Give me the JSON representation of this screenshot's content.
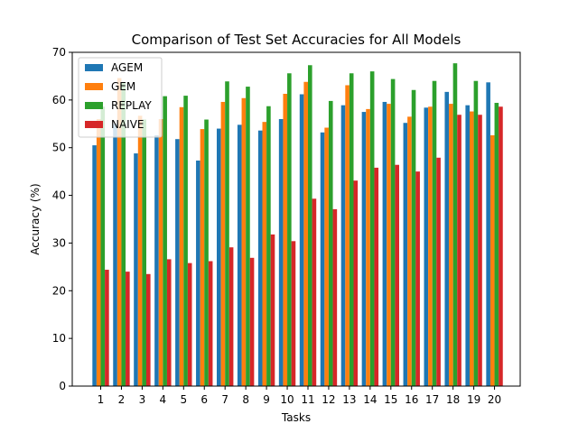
{
  "chart_data": {
    "type": "bar",
    "title": "Comparison of Test Set Accuracies for All Models",
    "xlabel": "Tasks",
    "ylabel": "Accuracy (%)",
    "ylim": [
      0,
      70
    ],
    "yticks": [
      0,
      10,
      20,
      30,
      40,
      50,
      60,
      70
    ],
    "categories": [
      "1",
      "2",
      "3",
      "4",
      "5",
      "6",
      "7",
      "8",
      "9",
      "10",
      "11",
      "12",
      "13",
      "14",
      "15",
      "16",
      "17",
      "18",
      "19",
      "20"
    ],
    "grid": false,
    "legend_position": "upper-left",
    "series": [
      {
        "name": "AGEM",
        "color": "#1f77b4",
        "values": [
          50.5,
          55.0,
          48.8,
          52.6,
          51.8,
          47.3,
          54.0,
          54.8,
          53.6,
          56.0,
          61.2,
          53.2,
          58.9,
          57.5,
          59.6,
          55.2,
          58.4,
          61.7,
          58.9,
          63.7
        ]
      },
      {
        "name": "GEM",
        "color": "#ff7f0e",
        "values": [
          56.0,
          64.6,
          56.7,
          56.0,
          58.5,
          53.9,
          59.6,
          60.4,
          55.4,
          61.3,
          63.8,
          54.2,
          63.1,
          58.1,
          59.2,
          56.5,
          58.6,
          59.2,
          57.6,
          52.6
        ]
      },
      {
        "name": "REPLAY",
        "color": "#2ca02c",
        "values": [
          58.6,
          63.6,
          55.9,
          60.8,
          60.9,
          55.9,
          63.9,
          62.8,
          58.7,
          65.6,
          67.3,
          59.8,
          65.6,
          66.0,
          64.4,
          62.1,
          64.0,
          67.7,
          64.0,
          59.4
        ]
      },
      {
        "name": "NAIVE",
        "color": "#d62728",
        "values": [
          24.4,
          24.0,
          23.5,
          26.6,
          25.8,
          26.2,
          29.1,
          26.9,
          31.8,
          30.4,
          39.3,
          37.1,
          43.1,
          45.8,
          46.4,
          45.0,
          47.9,
          56.9,
          56.9,
          58.6
        ]
      }
    ]
  }
}
